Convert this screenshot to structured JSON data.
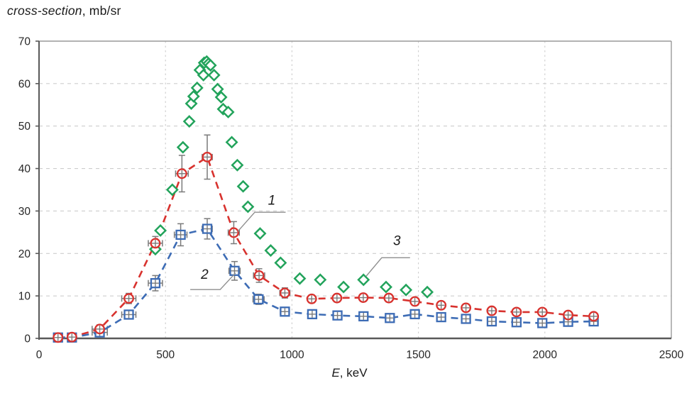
{
  "title": {
    "italic": "cross-section",
    "rest": ", mb/sr"
  },
  "xlabel": {
    "italic": "E",
    "rest": ", keV"
  },
  "chart_data": {
    "type": "scatter",
    "title": "cross-section, mb/sr",
    "xlabel": "E, keV",
    "ylabel": "cross-section, mb/sr",
    "xlim": [
      0,
      2500
    ],
    "ylim": [
      0,
      70
    ],
    "xticks": [
      0,
      500,
      1000,
      1500,
      2000,
      2500
    ],
    "yticks": [
      0,
      10,
      20,
      30,
      40,
      50,
      60,
      70
    ],
    "xtick_labels": [
      "0",
      "500",
      "1000",
      "1500",
      "2000",
      "2500"
    ],
    "ytick_labels": [
      "0",
      "10",
      "20",
      "30",
      "40",
      "50",
      "60",
      "70"
    ],
    "grid": true,
    "legend_position": "none",
    "colors": {
      "series1_red": "#d8322e",
      "series2_blue": "#3d6cb5",
      "series3_green": "#22a35b",
      "error_bars": "#7a7a7a",
      "gridlines": "#cdcdcd",
      "axis": "#595959",
      "leader_lines": "#8e8e8e"
    },
    "point_format": [
      "E_keV",
      "value_mb_sr",
      "xerr_keV",
      "yerr_mb_sr"
    ],
    "series": [
      {
        "name": "1",
        "marker": "circle",
        "color": "#d8322e",
        "line": "dashed",
        "has_error_bars": true,
        "points": [
          [
            75,
            0.2,
            10,
            0.5
          ],
          [
            130,
            0.3,
            12,
            0.5
          ],
          [
            240,
            2.2,
            30,
            1.0
          ],
          [
            355,
            9.4,
            28,
            1.2
          ],
          [
            460,
            22.4,
            28,
            1.6
          ],
          [
            565,
            38.8,
            25,
            4.3
          ],
          [
            665,
            42.7,
            20,
            5.2
          ],
          [
            770,
            24.9,
            22,
            2.6
          ],
          [
            870,
            14.8,
            22,
            1.6
          ],
          [
            972,
            10.7,
            20,
            1.2
          ],
          [
            1078,
            9.3,
            12,
            0.9
          ],
          [
            1178,
            9.5,
            12,
            0.9
          ],
          [
            1282,
            9.6,
            12,
            0.9
          ],
          [
            1383,
            9.5,
            12,
            0.9
          ],
          [
            1486,
            8.7,
            12,
            0.9
          ],
          [
            1590,
            7.8,
            12,
            0.9
          ],
          [
            1688,
            7.2,
            12,
            0.9
          ],
          [
            1790,
            6.5,
            12,
            0.8
          ],
          [
            1888,
            6.2,
            12,
            0.8
          ],
          [
            1990,
            6.2,
            12,
            0.8
          ],
          [
            2092,
            5.5,
            12,
            0.8
          ],
          [
            2193,
            5.2,
            12,
            0.8
          ]
        ]
      },
      {
        "name": "2",
        "marker": "square",
        "color": "#3d6cb5",
        "line": "dashed",
        "has_error_bars": true,
        "points": [
          [
            75,
            0.2,
            10,
            0.5
          ],
          [
            130,
            0.2,
            12,
            0.5
          ],
          [
            240,
            1.4,
            30,
            0.8
          ],
          [
            355,
            5.6,
            28,
            1.0
          ],
          [
            460,
            13.0,
            28,
            1.8
          ],
          [
            560,
            24.4,
            25,
            2.6
          ],
          [
            665,
            25.8,
            20,
            2.4
          ],
          [
            773,
            15.9,
            22,
            2.2
          ],
          [
            868,
            9.2,
            22,
            1.2
          ],
          [
            972,
            6.3,
            18,
            1.0
          ],
          [
            1080,
            5.7,
            12,
            0.8
          ],
          [
            1180,
            5.4,
            12,
            0.8
          ],
          [
            1283,
            5.2,
            12,
            0.8
          ],
          [
            1387,
            4.8,
            12,
            0.8
          ],
          [
            1486,
            5.7,
            12,
            0.8
          ],
          [
            1590,
            5.0,
            12,
            0.8
          ],
          [
            1688,
            4.6,
            12,
            0.8
          ],
          [
            1790,
            4.0,
            12,
            0.8
          ],
          [
            1888,
            3.8,
            12,
            0.8
          ],
          [
            1990,
            3.6,
            12,
            0.8
          ],
          [
            2092,
            3.9,
            12,
            0.8
          ],
          [
            2193,
            4.0,
            12,
            0.8
          ]
        ]
      },
      {
        "name": "3",
        "marker": "diamond",
        "color": "#22a35b",
        "line": "none",
        "has_error_bars": false,
        "points": [
          [
            460,
            21.0
          ],
          [
            480,
            25.4
          ],
          [
            527,
            35.0
          ],
          [
            569,
            45.0
          ],
          [
            594,
            51.1
          ],
          [
            602,
            55.3
          ],
          [
            611,
            57.0
          ],
          [
            625,
            59.0
          ],
          [
            636,
            63.2
          ],
          [
            650,
            62.0
          ],
          [
            653,
            64.9
          ],
          [
            663,
            65.2
          ],
          [
            670,
            64.7
          ],
          [
            678,
            64.3
          ],
          [
            692,
            62.0
          ],
          [
            706,
            58.7
          ],
          [
            720,
            56.8
          ],
          [
            728,
            54.0
          ],
          [
            748,
            53.3
          ],
          [
            762,
            46.2
          ],
          [
            784,
            40.8
          ],
          [
            807,
            35.8
          ],
          [
            826,
            31.0
          ],
          [
            874,
            24.7
          ],
          [
            916,
            20.7
          ],
          [
            955,
            17.8
          ],
          [
            1031,
            14.1
          ],
          [
            1112,
            13.8
          ],
          [
            1204,
            12.1
          ],
          [
            1283,
            13.8
          ],
          [
            1372,
            12.1
          ],
          [
            1451,
            11.4
          ],
          [
            1535,
            10.9
          ]
        ]
      }
    ],
    "annotations": [
      {
        "label": "1",
        "text_x": 920,
        "text_y": 32.5,
        "leader": [
          [
            786,
            25.2
          ],
          [
            853,
            29.7
          ],
          [
            975,
            29.7
          ]
        ]
      },
      {
        "label": "2",
        "text_x": 655,
        "text_y": 15.0,
        "leader": [
          [
            598,
            11.5
          ],
          [
            716,
            11.5
          ],
          [
            777,
            15.4
          ]
        ]
      },
      {
        "label": "3",
        "text_x": 1415,
        "text_y": 23.0,
        "leader": [
          [
            1293,
            14.6
          ],
          [
            1355,
            19.0
          ],
          [
            1467,
            19.0
          ]
        ]
      }
    ]
  }
}
